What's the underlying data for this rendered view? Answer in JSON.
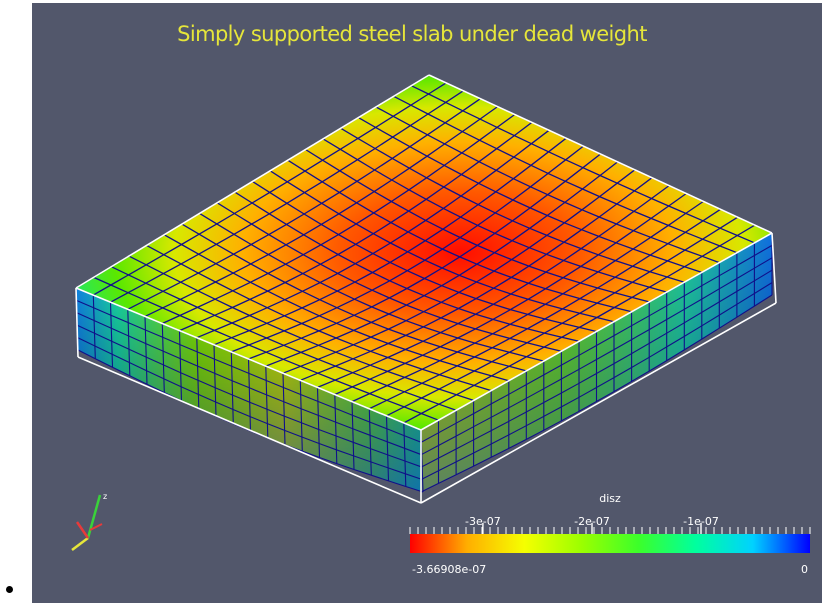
{
  "render_view": {
    "title": "Simply supported steel slab under dead weight",
    "background_color": "#52576b",
    "title_color": "#e6e63a",
    "outline_color": "#ffffff",
    "mesh_line_color": "#10108a"
  },
  "axes_triad": {
    "icon": "xyz-orientation-axes-icon",
    "x_color": "#e83a3a",
    "y_color": "#e6e63a",
    "z_color": "#3ad23a"
  },
  "scalar_bar": {
    "name": "disz",
    "ticks": [
      "-3e-07",
      "-2e-07",
      "-1e-07"
    ],
    "tick_values": [
      -3e-07,
      -2e-07,
      -1e-07
    ],
    "range_min_label": "-3.66908e-07",
    "range_max_label": "0",
    "range": [
      -3.66908e-07,
      0
    ],
    "colormap": [
      "#ff0000",
      "#ffae00",
      "#f5ff00",
      "#9bff00",
      "#3cff2a",
      "#00ff9e",
      "#00d2ff",
      "#0000ff"
    ]
  }
}
